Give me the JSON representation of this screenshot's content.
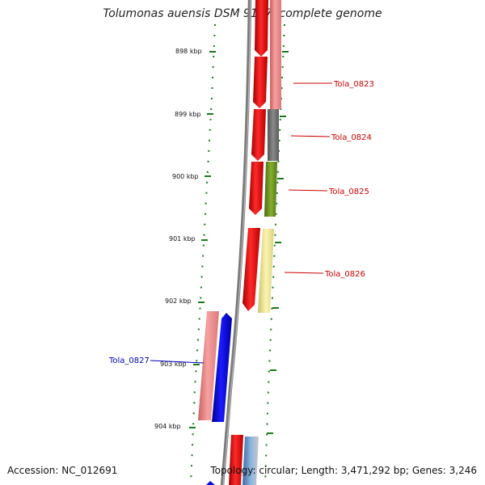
{
  "title": "Tolumonas auensis DSM 9187, complete genome",
  "footer": {
    "accession": "Accession: NC_012691",
    "summary": "Topology: circular; Length: 3,471,292 bp; Genes: 3,246"
  },
  "scale": {
    "ticks": [
      "898 kbp",
      "899 kbp",
      "900 kbp",
      "901 kbp",
      "902 kbp",
      "903 kbp",
      "904 kbp"
    ]
  },
  "genes": [
    {
      "label": "Tola_0823",
      "strand": "forward"
    },
    {
      "label": "Tola_0824",
      "strand": "forward"
    },
    {
      "label": "Tola_0825",
      "strand": "forward"
    },
    {
      "label": "Tola_0826",
      "strand": "forward"
    },
    {
      "label": "Tola_0827",
      "strand": "reverse"
    }
  ],
  "colors": {
    "forward_cds": "#ee1111",
    "reverse_cds": "#0a0ae6",
    "forward_label": "#cc0000",
    "reverse_label": "#0000bb",
    "backbone": "#7a7a7a",
    "tick_green": "#1a7a1a",
    "cog_pink": "#f08a8a",
    "cog_gray": "#777777",
    "cog_olive": "#6b8e1f",
    "cog_yellow": "#f3ec97"
  }
}
